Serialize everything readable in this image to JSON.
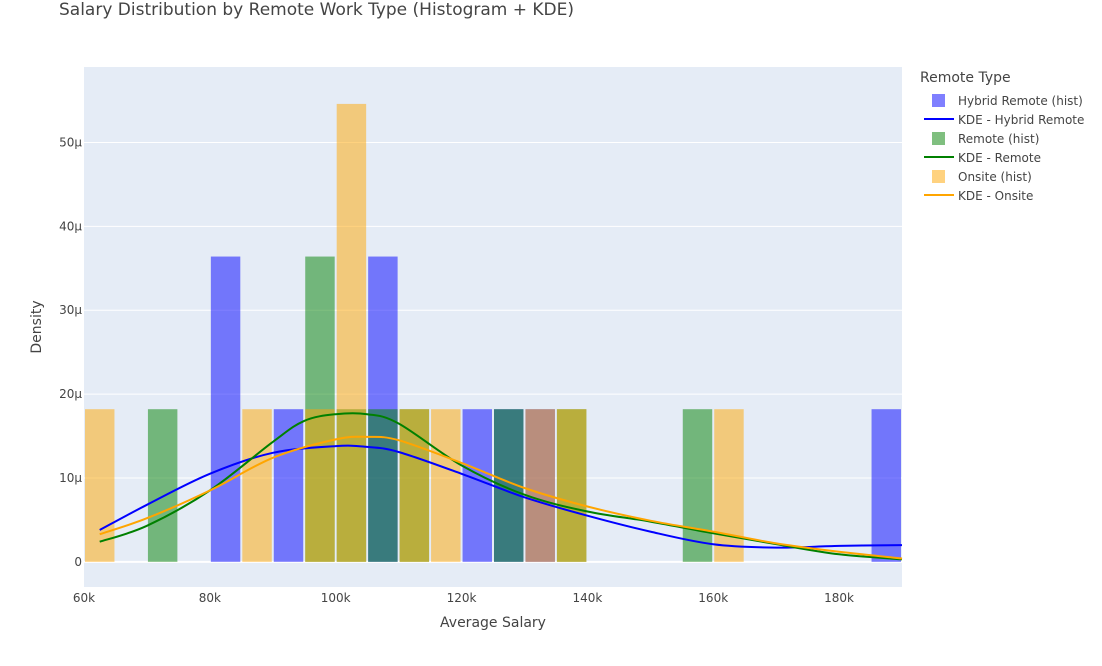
{
  "chart_data": {
    "type": "bar",
    "title": "Salary Distribution by Remote Work Type (Histogram + KDE)",
    "xlabel": "Average Salary",
    "ylabel": "Density",
    "xlim": [
      60000,
      190000
    ],
    "ylim": [
      -3e-06,
      5.9e-05
    ],
    "x_ticks": [
      60000,
      80000,
      100000,
      120000,
      140000,
      160000,
      180000
    ],
    "x_tick_labels": [
      "60k",
      "80k",
      "100k",
      "120k",
      "140k",
      "160k",
      "180k"
    ],
    "y_ticks": [
      0,
      1e-05,
      2e-05,
      3e-05,
      4e-05,
      5e-05
    ],
    "y_tick_labels": [
      "0",
      "10μ",
      "20μ",
      "30μ",
      "40μ",
      "50μ"
    ],
    "bin_width": 5000,
    "legend_title": "Remote Type",
    "legend_position": "top-right, outside plot",
    "histograms": [
      {
        "name": "Hybrid Remote (hist)",
        "color": "#0000ff",
        "opacity": 0.5,
        "bins": [
          [
            80000,
            3.64e-05
          ],
          [
            90000,
            1.82e-05
          ],
          [
            105000,
            3.64e-05
          ],
          [
            120000,
            1.82e-05
          ],
          [
            125000,
            1.82e-05
          ],
          [
            130000,
            1.82e-05
          ],
          [
            185000,
            1.82e-05
          ]
        ]
      },
      {
        "name": "Remote (hist)",
        "color": "#008000",
        "opacity": 0.5,
        "bins": [
          [
            70000,
            1.82e-05
          ],
          [
            95000,
            3.64e-05
          ],
          [
            100000,
            1.82e-05
          ],
          [
            105000,
            1.82e-05
          ],
          [
            110000,
            1.82e-05
          ],
          [
            125000,
            1.82e-05
          ],
          [
            135000,
            1.82e-05
          ],
          [
            155000,
            1.82e-05
          ]
        ]
      },
      {
        "name": "Onsite (hist)",
        "color": "#ffa500",
        "opacity": 0.5,
        "bins": [
          [
            60000,
            1.82e-05
          ],
          [
            85000,
            1.82e-05
          ],
          [
            95000,
            1.82e-05
          ],
          [
            100000,
            5.46e-05
          ],
          [
            110000,
            1.82e-05
          ],
          [
            115000,
            1.82e-05
          ],
          [
            130000,
            1.82e-05
          ],
          [
            135000,
            1.82e-05
          ],
          [
            160000,
            1.82e-05
          ]
        ]
      }
    ],
    "kde": [
      {
        "name": "KDE - Hybrid Remote",
        "color": "#0000ff",
        "x": [
          62500,
          70000,
          80000,
          90000,
          100000,
          105000,
          110000,
          120000,
          130000,
          140000,
          150000,
          160000,
          170000,
          180000,
          190000
        ],
        "y": [
          3.8e-06,
          6.8e-06,
          1.05e-05,
          1.3e-05,
          1.38e-05,
          1.37e-05,
          1.31e-05,
          1.05e-05,
          7.7e-06,
          5.5e-06,
          3.6e-06,
          2.1e-06,
          1.7e-06,
          1.9e-06,
          2e-06
        ]
      },
      {
        "name": "KDE - Remote",
        "color": "#008000",
        "x": [
          62500,
          70000,
          80000,
          90000,
          95000,
          100000,
          105000,
          110000,
          120000,
          130000,
          140000,
          150000,
          160000,
          170000,
          180000,
          190000
        ],
        "y": [
          2.4e-06,
          4.3e-06,
          8.5e-06,
          1.43e-05,
          1.68e-05,
          1.76e-05,
          1.76e-05,
          1.65e-05,
          1.15e-05,
          8e-06,
          6e-06,
          4.8e-06,
          3.4e-06,
          2.1e-06,
          9e-07,
          3e-07
        ]
      },
      {
        "name": "KDE - Onsite",
        "color": "#ffa500",
        "x": [
          62500,
          70000,
          80000,
          90000,
          100000,
          105000,
          110000,
          120000,
          130000,
          140000,
          150000,
          160000,
          170000,
          180000,
          190000
        ],
        "y": [
          3.3e-06,
          5.2e-06,
          8.5e-06,
          1.24e-05,
          1.46e-05,
          1.49e-05,
          1.45e-05,
          1.18e-05,
          8.8e-06,
          6.6e-06,
          4.9e-06,
          3.6e-06,
          2.2e-06,
          1.2e-06,
          4e-07
        ]
      }
    ]
  },
  "legend_items": [
    {
      "label": "Hybrid Remote (hist)",
      "kind": "square",
      "color": "#0000ff"
    },
    {
      "label": "KDE - Hybrid Remote",
      "kind": "line",
      "color": "#0000ff"
    },
    {
      "label": "Remote (hist)",
      "kind": "square",
      "color": "#008000"
    },
    {
      "label": "KDE - Remote",
      "kind": "line",
      "color": "#008000"
    },
    {
      "label": "Onsite (hist)",
      "kind": "square",
      "color": "#ffa500"
    },
    {
      "label": "KDE - Onsite",
      "kind": "line",
      "color": "#ffa500"
    }
  ]
}
